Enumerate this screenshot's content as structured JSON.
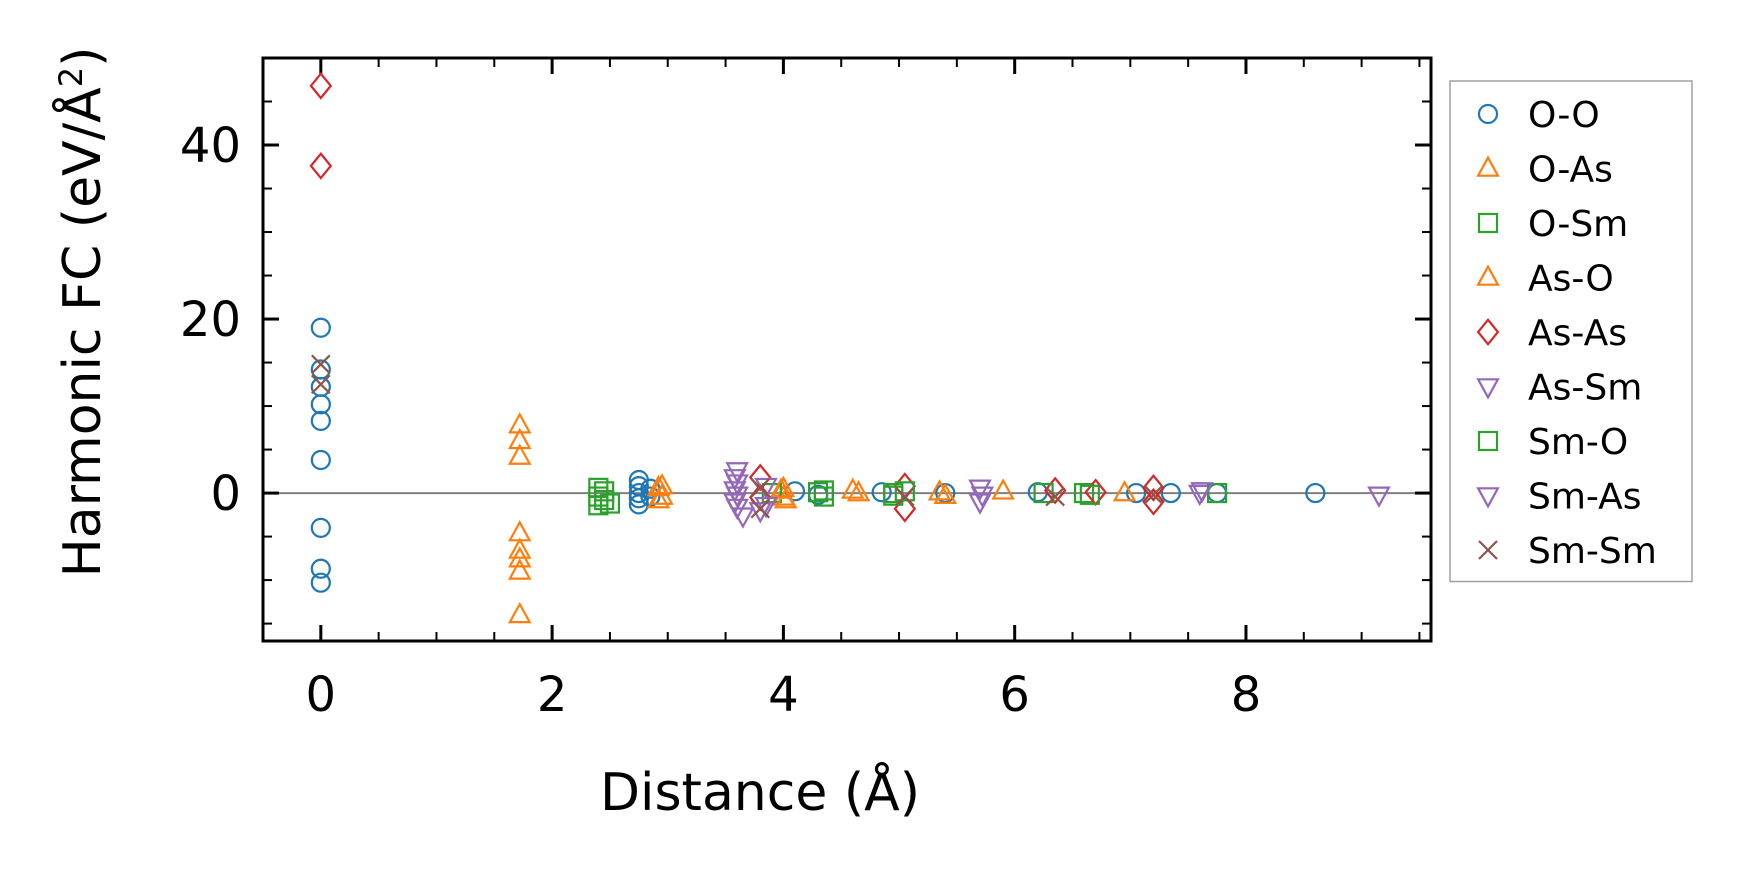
{
  "chart_data": {
    "type": "scatter",
    "xlabel": "Distance (Å)",
    "ylabel": {
      "main": "Harmonic FC (eV/Å",
      "sup": "2",
      "end": ")"
    },
    "xlim": [
      -0.5,
      9.6
    ],
    "ylim": [
      -17,
      50
    ],
    "x_ticks": [
      0,
      2,
      4,
      6,
      8
    ],
    "y_ticks": [
      0,
      20,
      40
    ],
    "x_tick_labels": [
      "0",
      "2",
      "4",
      "6",
      "8"
    ],
    "y_tick_labels": [
      "0",
      "20",
      "40"
    ],
    "grid": false,
    "zero_line": true,
    "legend_position": "right",
    "series": [
      {
        "name": "O-O",
        "marker": "circle",
        "color": "#1f77b4",
        "points": [
          [
            0,
            19
          ],
          [
            0,
            14.2
          ],
          [
            0,
            12.2
          ],
          [
            0,
            10.2
          ],
          [
            0,
            8.3
          ],
          [
            0,
            3.8
          ],
          [
            0,
            -4
          ],
          [
            0,
            -8.7
          ],
          [
            0,
            -10.3
          ],
          [
            2.75,
            1.5
          ],
          [
            2.75,
            0.8
          ],
          [
            2.75,
            0
          ],
          [
            2.75,
            -0.6
          ],
          [
            2.75,
            -1.3
          ],
          [
            2.85,
            0.5
          ],
          [
            2.85,
            -0.4
          ],
          [
            4.1,
            0.2
          ],
          [
            4.3,
            -0.2
          ],
          [
            4.85,
            0.1
          ],
          [
            5.4,
            0
          ],
          [
            6.2,
            0.1
          ],
          [
            7.05,
            0
          ],
          [
            7.35,
            0
          ],
          [
            7.75,
            0
          ],
          [
            8.6,
            0
          ]
        ]
      },
      {
        "name": "O-As",
        "marker": "triangle-up",
        "color": "#ff7f0e",
        "points": [
          [
            1.72,
            7.8
          ],
          [
            1.72,
            6
          ],
          [
            1.72,
            4.2
          ],
          [
            1.72,
            -4.6
          ],
          [
            1.72,
            -6.6
          ],
          [
            1.72,
            -7.6
          ],
          [
            1.72,
            -9
          ],
          [
            1.72,
            -14
          ],
          [
            2.95,
            0.8
          ],
          [
            2.95,
            -0.4
          ],
          [
            4.0,
            0.5
          ],
          [
            4.0,
            -0.5
          ],
          [
            4.6,
            0.3
          ],
          [
            5.35,
            0.1
          ],
          [
            5.9,
            0.2
          ],
          [
            6.95,
            0
          ]
        ]
      },
      {
        "name": "O-Sm",
        "marker": "square",
        "color": "#2ca02c",
        "points": [
          [
            2.4,
            0.6
          ],
          [
            2.4,
            -0.4
          ],
          [
            2.4,
            -1.4
          ],
          [
            2.5,
            -1.2
          ],
          [
            3.9,
            0
          ],
          [
            4.35,
            0.3
          ],
          [
            4.35,
            -0.4
          ],
          [
            4.95,
            0
          ],
          [
            6.6,
            0
          ]
        ]
      },
      {
        "name": "As-O",
        "marker": "triangle-up",
        "color": "#ff7f0e",
        "points": [
          [
            2.92,
            0.6
          ],
          [
            2.92,
            -0.8
          ],
          [
            3.98,
            0.3
          ],
          [
            4.02,
            -0.8
          ],
          [
            4.65,
            0
          ],
          [
            5.4,
            -0.3
          ]
        ]
      },
      {
        "name": "As-As",
        "marker": "diamond",
        "color": "#d62728",
        "points": [
          [
            0,
            46.8
          ],
          [
            0,
            37.6
          ],
          [
            3.8,
            1.8
          ],
          [
            3.8,
            -0.5
          ],
          [
            5.05,
            0.8
          ],
          [
            5.05,
            -1.8
          ],
          [
            6.35,
            0.3
          ],
          [
            6.7,
            0.1
          ],
          [
            7.2,
            0.6
          ],
          [
            7.2,
            -1
          ]
        ]
      },
      {
        "name": "As-Sm",
        "marker": "triangle-down",
        "color": "#9467bd",
        "points": [
          [
            3.6,
            2.6
          ],
          [
            3.6,
            1.2
          ],
          [
            3.6,
            -0.2
          ],
          [
            3.6,
            -1.6
          ],
          [
            3.65,
            -2.6
          ],
          [
            3.85,
            0.8
          ],
          [
            3.85,
            -1.4
          ],
          [
            5.7,
            0.6
          ],
          [
            5.7,
            -1
          ],
          [
            7.6,
            0
          ],
          [
            9.15,
            -0.2
          ]
        ]
      },
      {
        "name": "Sm-O",
        "marker": "square",
        "color": "#2ca02c",
        "points": [
          [
            2.45,
            0.2
          ],
          [
            2.45,
            -0.8
          ],
          [
            4.3,
            0.1
          ],
          [
            4.95,
            -0.3
          ],
          [
            5.05,
            0.2
          ],
          [
            6.25,
            0
          ],
          [
            6.65,
            -0.2
          ],
          [
            7.75,
            0
          ]
        ]
      },
      {
        "name": "Sm-As",
        "marker": "triangle-down",
        "color": "#9467bd",
        "points": [
          [
            3.58,
            1.8
          ],
          [
            3.58,
            0.4
          ],
          [
            3.58,
            -1
          ],
          [
            3.8,
            -2
          ],
          [
            5.72,
            -0.2
          ],
          [
            7.62,
            0.3
          ]
        ]
      },
      {
        "name": "Sm-Sm",
        "marker": "x",
        "color": "#8c564b",
        "points": [
          [
            0,
            14.8
          ],
          [
            0,
            12.5
          ],
          [
            3.8,
            0.6
          ],
          [
            3.8,
            -1.8
          ],
          [
            5.05,
            -0.4
          ],
          [
            6.35,
            -0.4
          ],
          [
            7.2,
            -0.2
          ]
        ]
      }
    ]
  }
}
